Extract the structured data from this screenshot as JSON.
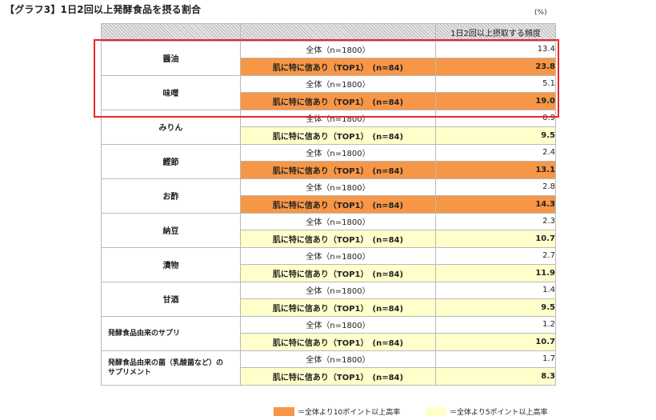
{
  "title": "【グラフ3】1日2回以上発酵食品を摂る割合",
  "unit": "(%)",
  "column_header": "1日2回以上摂取する頻度",
  "colors": {
    "orange": "#f79646",
    "yellow": "#ffffcc",
    "white": "#ffffff",
    "highlight": "#e8262a"
  },
  "segments": {
    "all": "全体（n=1800）",
    "top": "肌に特に信あり（TOP1）　(n=84)"
  },
  "legend": [
    {
      "label": "＝全体より10ポイント以上高率",
      "color": "#f79646"
    },
    {
      "label": "＝全体より5ポイント以上高率",
      "color": "#ffffcc"
    }
  ],
  "chart_data": {
    "type": "table",
    "title": "【グラフ3】1日2回以上発酵食品を摂る割合",
    "value_label": "1日2回以上摂取する頻度",
    "unit": "%",
    "series_names": [
      "全体（n=1800）",
      "肌に特に信あり（TOP1）　(n=84)"
    ],
    "highlighted_rows": [
      "醤油",
      "味噌"
    ],
    "rows": [
      {
        "food": "醤油",
        "all": "13.4",
        "top": "23.8",
        "top_level": "orange"
      },
      {
        "food": "味噌",
        "all": "5.1",
        "top": "19.0",
        "top_level": "orange"
      },
      {
        "food": "みりん",
        "all": "0.9",
        "top": "9.5",
        "top_level": "yellow"
      },
      {
        "food": "鰹節",
        "all": "2.4",
        "top": "13.1",
        "top_level": "orange"
      },
      {
        "food": "お酢",
        "all": "2.8",
        "top": "14.3",
        "top_level": "orange"
      },
      {
        "food": "納豆",
        "all": "2.3",
        "top": "10.7",
        "top_level": "yellow"
      },
      {
        "food": "漬物",
        "all": "2.7",
        "top": "11.9",
        "top_level": "yellow"
      },
      {
        "food": "甘酒",
        "all": "1.4",
        "top": "9.5",
        "top_level": "yellow"
      },
      {
        "food": "発酵食品由来のサプリ",
        "all": "1.2",
        "top": "10.7",
        "top_level": "yellow",
        "small": true
      },
      {
        "food": "発酵食品由来の菌（乳酸菌など）の\nサプリメント",
        "all": "1.7",
        "top": "8.3",
        "top_level": "yellow",
        "small": true
      }
    ]
  }
}
